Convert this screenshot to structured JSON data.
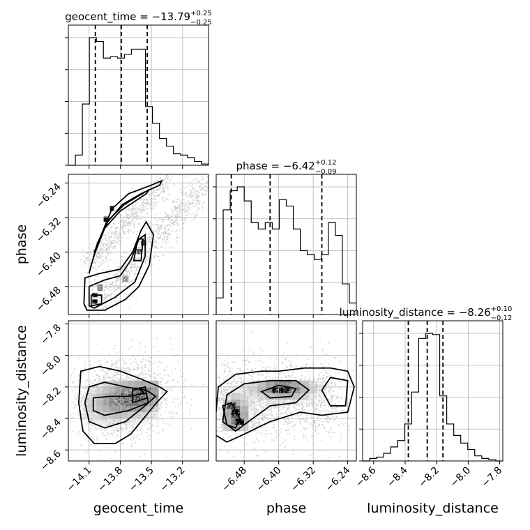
{
  "chart_data": {
    "type": "corner",
    "parameters": [
      "geocent_time",
      "phase",
      "luminosity_distance"
    ],
    "axis_labels": [
      "geocent_time",
      "phase",
      "luminosity_distance"
    ],
    "titles": [
      {
        "param": "geocent_time",
        "prefix": "geocent_time = ",
        "value": "−13.79",
        "plus": "+0.25",
        "minus": "−0.25"
      },
      {
        "param": "phase",
        "prefix": "phase = ",
        "value": "−6.42",
        "plus": "+0.12",
        "minus": "−0.09"
      },
      {
        "param": "luminosity_distance",
        "prefix": "luminosity_distance = ",
        "value": "−8.26",
        "plus": "+0.10",
        "minus": "−0.12"
      }
    ],
    "ranges": [
      [
        -14.3,
        -12.95
      ],
      [
        -6.545,
        -6.22
      ],
      [
        -8.67,
        -7.78
      ]
    ],
    "ticks": [
      [
        -14.1,
        -13.8,
        -13.5,
        -13.2
      ],
      [
        -6.48,
        -6.4,
        -6.32,
        -6.24
      ],
      [
        -8.6,
        -8.4,
        -8.2,
        -8.0,
        -7.8
      ]
    ],
    "tick_labels": [
      [
        "−14.1",
        "−13.8",
        "−13.5",
        "−13.2"
      ],
      [
        "−6.48",
        "−6.40",
        "−6.32",
        "−6.24"
      ],
      [
        "−8.6",
        "−8.4",
        "−8.2",
        "−8.0",
        "−7.8"
      ]
    ],
    "quantiles": [
      [
        -14.04,
        -13.79,
        -13.54
      ],
      [
        -6.51,
        -6.42,
        -6.3
      ],
      [
        -8.38,
        -8.26,
        -8.16
      ]
    ],
    "histograms": [
      {
        "param": "geocent_time",
        "edges_range": [
          -14.3,
          -12.95
        ],
        "counts": [
          0.0,
          0.08,
          0.48,
          1.0,
          0.97,
          0.84,
          0.85,
          0.84,
          0.87,
          0.91,
          0.91,
          0.46,
          0.33,
          0.21,
          0.15,
          0.09,
          0.08,
          0.06,
          0.03,
          0.01
        ]
      },
      {
        "param": "phase",
        "edges_range": [
          -6.545,
          -6.22
        ],
        "counts": [
          0.13,
          0.82,
          0.97,
          1.0,
          0.89,
          0.72,
          0.67,
          0.72,
          0.67,
          0.9,
          0.85,
          0.67,
          0.5,
          0.47,
          0.43,
          0.47,
          0.72,
          0.62,
          0.24,
          0.09
        ]
      },
      {
        "param": "luminosity_distance",
        "edges_range": [
          -8.67,
          -7.78
        ],
        "counts": [
          0.0,
          0.02,
          0.03,
          0.06,
          0.11,
          0.16,
          0.29,
          0.54,
          0.96,
          1.0,
          0.99,
          0.51,
          0.29,
          0.2,
          0.14,
          0.09,
          0.04,
          0.02,
          0.01,
          0.0
        ]
      }
    ],
    "grid": true,
    "color_scheme": {
      "line": "#000000",
      "sample": "#bdbdbd",
      "grid": "#b0b0b0"
    }
  }
}
